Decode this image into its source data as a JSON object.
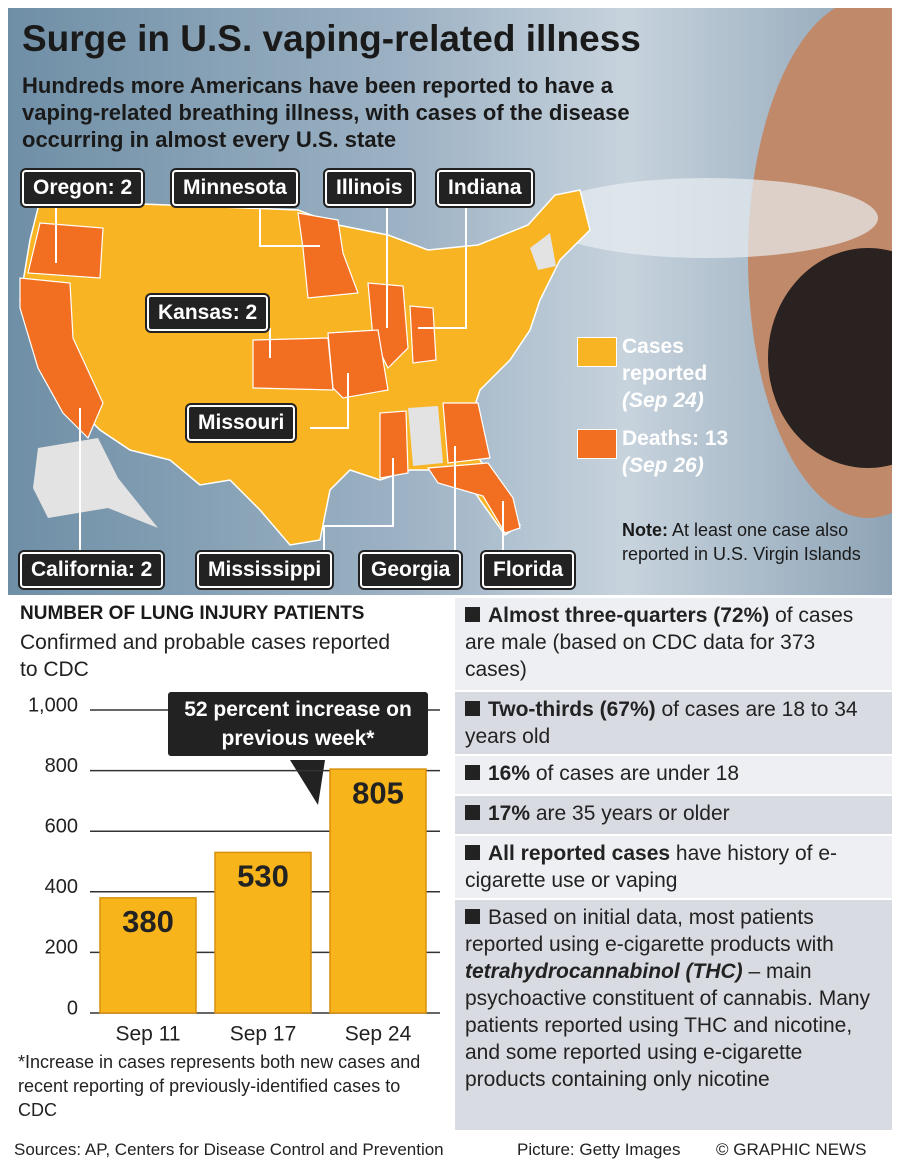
{
  "title": "Surge in U.S. vaping-related illness",
  "subtitle": "Hundreds more Americans have been reported to have a vaping-related breathing illness, with cases of the disease occurring in almost every U.S. state",
  "map": {
    "labels": [
      "Oregon: 2",
      "Minnesota",
      "Illinois",
      "Indiana",
      "Kansas: 2",
      "Missouri",
      "California: 2",
      "Mississippi",
      "Georgia",
      "Florida"
    ],
    "legend": [
      {
        "label": "Cases reported",
        "date": "(Sep 24)",
        "color": "#f8b422"
      },
      {
        "label": "Deaths: 13",
        "date": "(Sep 26)",
        "color": "#f26f22"
      }
    ],
    "note_label": "Note:",
    "note": "At least one case also reported in U.S. Virgin Islands"
  },
  "chart_data": {
    "type": "bar",
    "title": "NUMBER OF LUNG INJURY PATIENTS",
    "subtitle": "Confirmed and probable cases reported to CDC",
    "categories": [
      "Sep 11",
      "Sep 17",
      "Sep 24"
    ],
    "values": [
      380,
      530,
      805
    ],
    "color": "#f8b41b",
    "ylim": [
      0,
      1000
    ],
    "yticks": [
      0,
      200,
      400,
      600,
      800,
      {
        "value": 1000,
        "label": "1,000"
      }
    ],
    "grid": true,
    "annotation": "52 percent increase on previous week*",
    "footnote": "*Increase in cases represents both new cases and recent reporting of previously-identified cases to CDC"
  },
  "facts": [
    {
      "parts": [
        {
          "text": "Almost three-quarters (72%)",
          "bold": true
        },
        {
          "text": " of cases are male (based on CDC data for 373 cases)"
        }
      ]
    },
    {
      "parts": [
        {
          "text": "Two-thirds (67%)",
          "bold": true
        },
        {
          "text": " of cases are 18 to 34 years old"
        }
      ]
    },
    {
      "parts": [
        {
          "text": "16%",
          "bold": true
        },
        {
          "text": " of cases are under 18"
        }
      ]
    },
    {
      "parts": [
        {
          "text": "17%",
          "bold": true
        },
        {
          "text": " are 35 years or older"
        }
      ]
    },
    {
      "parts": [
        {
          "text": "All reported cases",
          "bold": true
        },
        {
          "text": " have history of e-cigarette use or vaping"
        }
      ]
    },
    {
      "parts": [
        {
          "text": "Based on initial data, most patients reported using e-cigarette products with "
        },
        {
          "text": "tetrahydrocannabinol (THC)",
          "bold": true,
          "italic": true
        },
        {
          "text": " – main psychoactive constituent of cannabis. Many patients reported using THC and nicotine, and some reported using e-cigarette products containing only nicotine"
        }
      ]
    }
  ],
  "footer": {
    "sources": "Sources: AP, Centers for Disease Control and Prevention",
    "picture": "Picture: Getty Images",
    "credit": "© GRAPHIC NEWS"
  }
}
